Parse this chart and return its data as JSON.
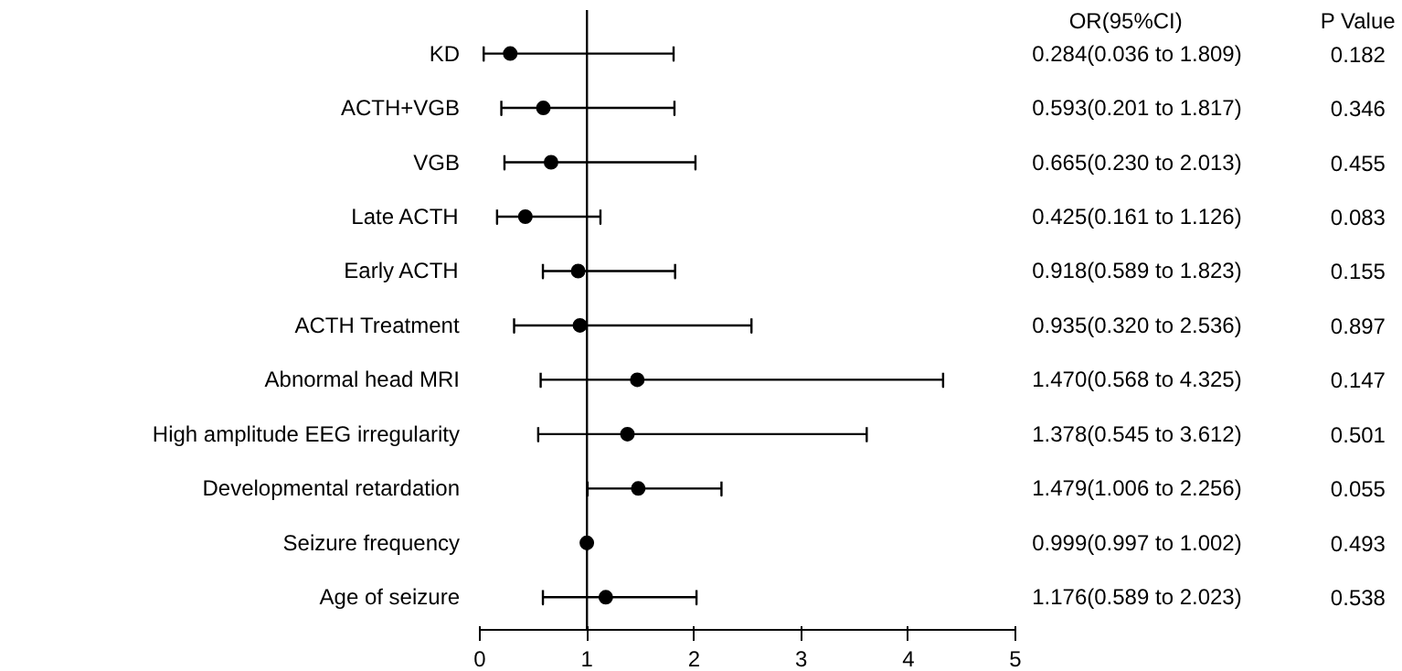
{
  "chart_data": {
    "type": "scatter",
    "orientation": "horizontal",
    "marker": "circle",
    "grid": false,
    "categories": [
      "KD",
      "ACTH+VGB",
      "VGB",
      "Late ACTH",
      "Early ACTH",
      "ACTH Treatment",
      "Abnormal head MRI",
      "High amplitude EEG irregularity",
      "Developmental retardation",
      "Seizure frequency",
      "Age of seizure"
    ],
    "series": [
      {
        "color": "#000000",
        "values": [
          0.284,
          0.593,
          0.665,
          0.425,
          0.918,
          0.935,
          1.47,
          1.378,
          1.479,
          0.999,
          1.176
        ],
        "errors": [
          [
            0.036,
            1.809
          ],
          [
            0.201,
            1.817
          ],
          [
            0.23,
            2.013
          ],
          [
            0.161,
            1.126
          ],
          [
            0.589,
            1.823
          ],
          [
            0.32,
            2.536
          ],
          [
            0.568,
            4.325
          ],
          [
            0.545,
            3.612
          ],
          [
            1.006,
            2.256
          ],
          [
            0.997,
            1.002
          ],
          [
            0.589,
            2.023
          ]
        ],
        "value_labels": [
          "0.284(0.036 to 1.809)",
          "0.593(0.201 to 1.817)",
          "0.665(0.230 to 2.013)",
          "0.425(0.161 to 1.126)",
          "0.918(0.589 to 1.823)",
          "0.935(0.320 to 2.536)",
          "1.470(0.568 to 4.325)",
          "1.378(0.545 to 3.612)",
          "1.479(1.006 to 2.256)",
          "0.999(0.997 to 1.002)",
          "1.176(0.589 to 2.023)"
        ]
      }
    ],
    "xlim": [
      0,
      5
    ],
    "xticks": [
      0,
      1,
      2,
      3,
      4,
      5
    ],
    "ref_lines": [
      {
        "axis": "x",
        "value": 1,
        "color": "#000000"
      }
    ],
    "annotations": [
      "OR(95%CI)",
      "P Value",
      "0.182",
      "0.346",
      "0.455",
      "0.083",
      "0.155",
      "0.897",
      "0.147",
      "0.501",
      "0.055",
      "0.493",
      "0.538"
    ]
  }
}
